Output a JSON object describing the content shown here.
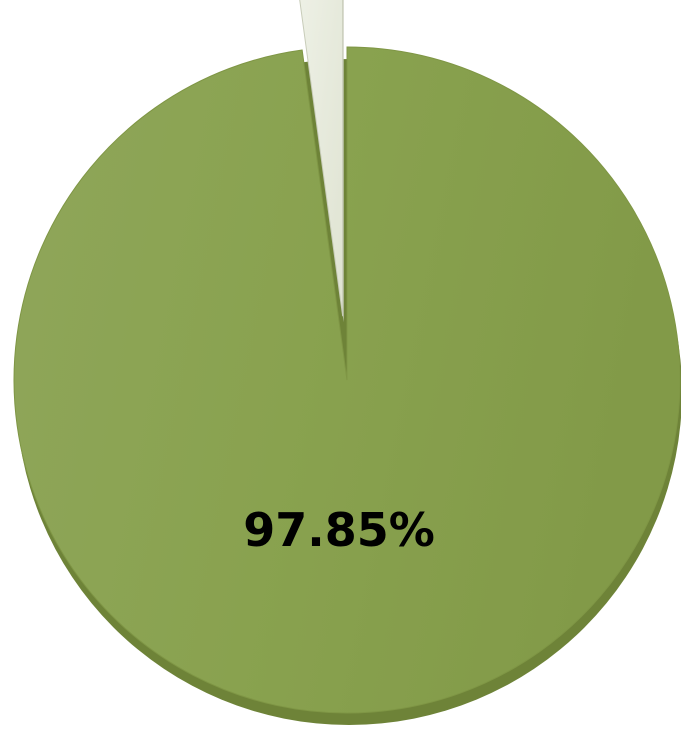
{
  "chart_data": {
    "type": "pie",
    "title": "",
    "categories": [
      "",
      ""
    ],
    "values": [
      97.85,
      2.15
    ],
    "data_labels": [
      "97.85%",
      ""
    ],
    "colors": [
      "#87a04e",
      "#e9ece0"
    ],
    "exploded": [
      false,
      true
    ],
    "legend": "none",
    "start_angle_deg": 0,
    "direction": "clockwise"
  }
}
